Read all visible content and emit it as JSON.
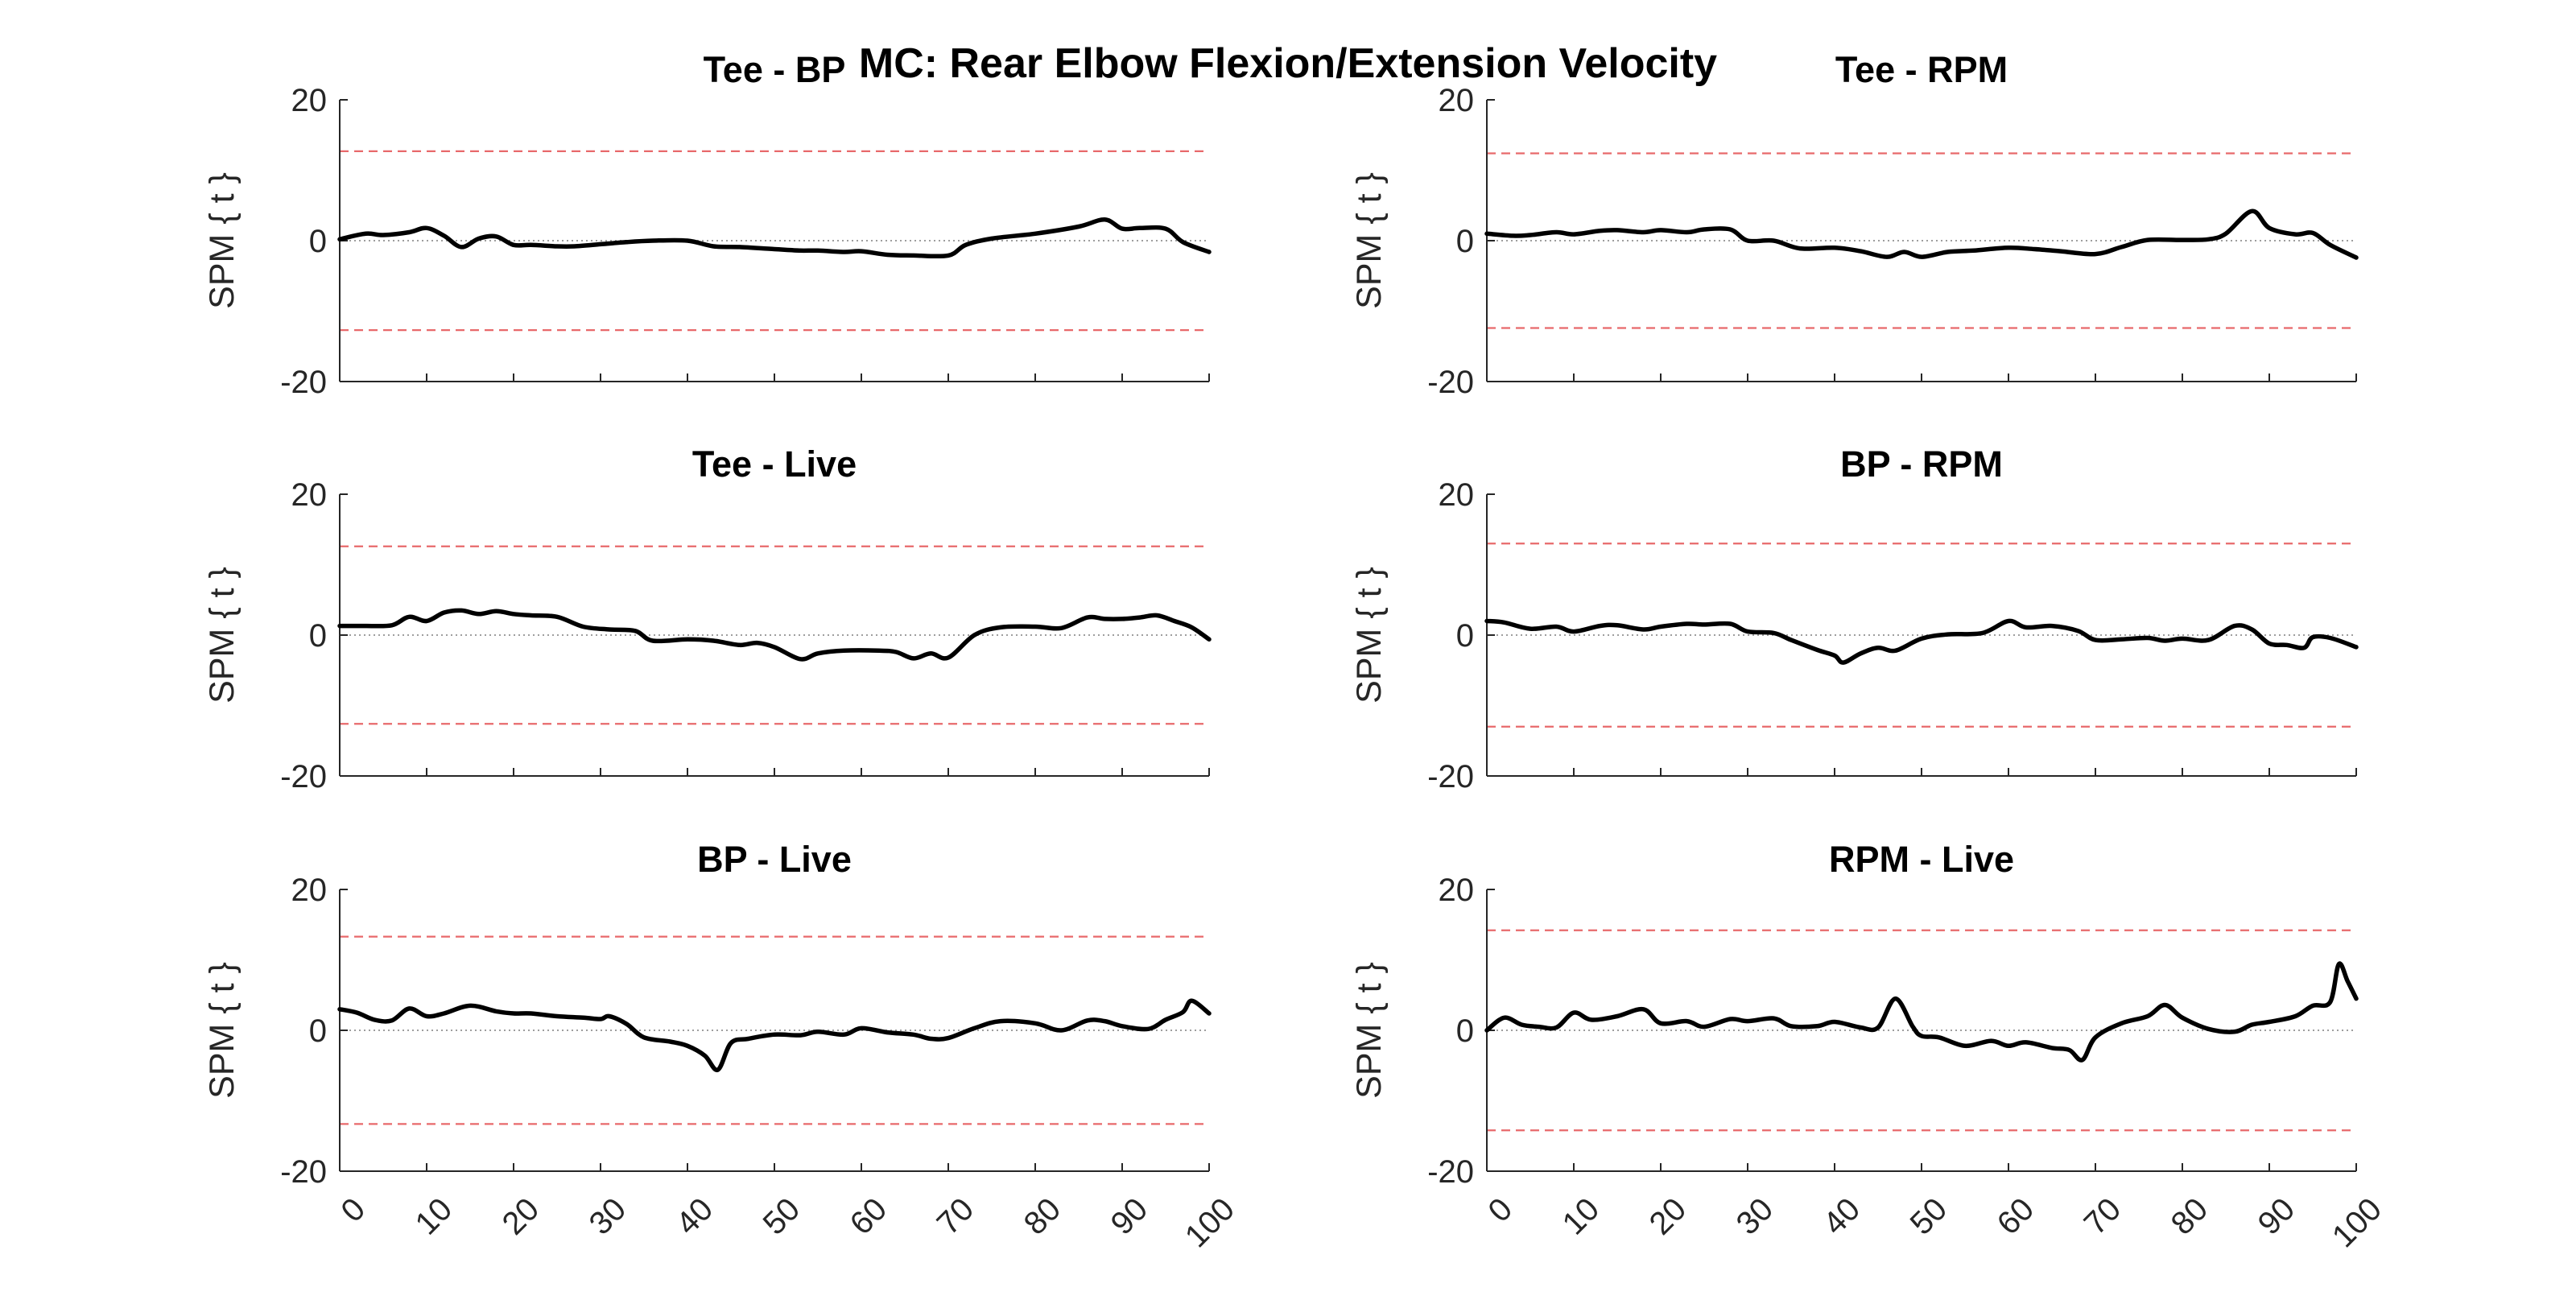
{
  "figure_title": "MC: Rear Elbow Flexion/Extension Velocity",
  "colors": {
    "curve": "#000000",
    "threshold": "#e8696b",
    "zero_line": "#9e9e9e",
    "axis": "#262626"
  },
  "chart_data": [
    {
      "type": "line",
      "title": "Tee - BP",
      "ylabel": "SPM { t }",
      "xlabel": "",
      "xlim": [
        0,
        100
      ],
      "ylim": [
        -20,
        20
      ],
      "yticks": [
        -20,
        0,
        20
      ],
      "xticks": [
        0,
        10,
        20,
        30,
        40,
        50,
        60,
        70,
        80,
        90,
        100
      ],
      "show_xtick_labels": false,
      "threshold": 12.7,
      "grid": false,
      "x": [
        0,
        3,
        5,
        8,
        10,
        12,
        14,
        16,
        18,
        20,
        22,
        25,
        27,
        30,
        33,
        36,
        40,
        43,
        46,
        50,
        53,
        55,
        58,
        60,
        63,
        66,
        70,
        72,
        75,
        80,
        85,
        88,
        90,
        92,
        95,
        97,
        100
      ],
      "y": [
        0.2,
        1.0,
        0.8,
        1.2,
        1.8,
        0.7,
        -0.9,
        0.3,
        0.6,
        -0.6,
        -0.6,
        -0.8,
        -0.8,
        -0.5,
        -0.2,
        0.0,
        0.0,
        -0.8,
        -0.9,
        -1.2,
        -1.4,
        -1.4,
        -1.6,
        -1.5,
        -2.0,
        -2.1,
        -2.1,
        -0.6,
        0.3,
        1.0,
        2.0,
        3.0,
        1.7,
        1.8,
        1.7,
        -0.2,
        -1.6
      ]
    },
    {
      "type": "line",
      "title": "Tee - RPM",
      "ylabel": "SPM { t }",
      "xlabel": "",
      "xlim": [
        0,
        100
      ],
      "ylim": [
        -20,
        20
      ],
      "yticks": [
        -20,
        0,
        20
      ],
      "xticks": [
        0,
        10,
        20,
        30,
        40,
        50,
        60,
        70,
        80,
        90,
        100
      ],
      "show_xtick_labels": false,
      "threshold": 12.4,
      "grid": false,
      "x": [
        0,
        3,
        5,
        8,
        10,
        13,
        15,
        18,
        20,
        23,
        25,
        28,
        30,
        33,
        36,
        40,
        43,
        46,
        48,
        50,
        53,
        56,
        60,
        63,
        66,
        70,
        73,
        76,
        80,
        83,
        85,
        88,
        90,
        93,
        95,
        97,
        100
      ],
      "y": [
        1.0,
        0.7,
        0.8,
        1.2,
        0.9,
        1.4,
        1.5,
        1.2,
        1.5,
        1.2,
        1.6,
        1.6,
        0.0,
        0.0,
        -1.1,
        -1.0,
        -1.5,
        -2.3,
        -1.6,
        -2.3,
        -1.6,
        -1.4,
        -1.0,
        -1.2,
        -1.5,
        -1.9,
        -0.9,
        0.1,
        0.1,
        0.2,
        1.0,
        4.2,
        1.8,
        0.9,
        1.1,
        -0.6,
        -2.4
      ]
    },
    {
      "type": "line",
      "title": "Tee - Live",
      "ylabel": "SPM { t }",
      "xlabel": "",
      "xlim": [
        0,
        100
      ],
      "ylim": [
        -20,
        20
      ],
      "yticks": [
        -20,
        0,
        20
      ],
      "xticks": [
        0,
        10,
        20,
        30,
        40,
        50,
        60,
        70,
        80,
        90,
        100
      ],
      "show_xtick_labels": false,
      "threshold": 12.6,
      "grid": false,
      "x": [
        0,
        3,
        6,
        8,
        10,
        12,
        14,
        16,
        18,
        20,
        22,
        25,
        28,
        31,
        34,
        36,
        40,
        43,
        46,
        48,
        50,
        53,
        55,
        58,
        62,
        64,
        66,
        68,
        70,
        73,
        76,
        80,
        83,
        86,
        88,
        90,
        92,
        94,
        96,
        98,
        100
      ],
      "y": [
        1.3,
        1.3,
        1.4,
        2.6,
        2.0,
        3.2,
        3.5,
        3.0,
        3.4,
        3.0,
        2.8,
        2.6,
        1.2,
        0.8,
        0.6,
        -0.8,
        -0.6,
        -0.8,
        -1.4,
        -1.1,
        -1.7,
        -3.4,
        -2.6,
        -2.2,
        -2.2,
        -2.4,
        -3.3,
        -2.6,
        -3.2,
        0.0,
        1.1,
        1.2,
        1.0,
        2.5,
        2.3,
        2.3,
        2.5,
        2.8,
        2.0,
        1.1,
        -0.6
      ]
    },
    {
      "type": "line",
      "title": "BP - RPM",
      "ylabel": "SPM { t }",
      "xlabel": "",
      "xlim": [
        0,
        100
      ],
      "ylim": [
        -20,
        20
      ],
      "yticks": [
        -20,
        0,
        20
      ],
      "xticks": [
        0,
        10,
        20,
        30,
        40,
        50,
        60,
        70,
        80,
        90,
        100
      ],
      "show_xtick_labels": false,
      "threshold": 13.0,
      "grid": false,
      "x": [
        0,
        2,
        5,
        8,
        10,
        13,
        15,
        18,
        20,
        23,
        25,
        28,
        30,
        33,
        35,
        38,
        40,
        41,
        43,
        45,
        47,
        50,
        53,
        57,
        60,
        62,
        65,
        68,
        70,
        73,
        76,
        78,
        80,
        83,
        86,
        88,
        90,
        92,
        94,
        95,
        97,
        100
      ],
      "y": [
        2.0,
        1.8,
        0.9,
        1.2,
        0.5,
        1.3,
        1.4,
        0.8,
        1.2,
        1.6,
        1.5,
        1.6,
        0.5,
        0.3,
        -0.7,
        -2.1,
        -2.9,
        -3.9,
        -2.6,
        -1.8,
        -2.2,
        -0.5,
        0.1,
        0.3,
        2.0,
        1.1,
        1.3,
        0.6,
        -0.7,
        -0.6,
        -0.4,
        -0.8,
        -0.5,
        -0.7,
        1.3,
        0.8,
        -1.2,
        -1.4,
        -1.8,
        -0.3,
        -0.4,
        -1.7
      ]
    },
    {
      "type": "line",
      "title": "BP - Live",
      "ylabel": "SPM { t }",
      "xlabel": "",
      "xlim": [
        0,
        100
      ],
      "ylim": [
        -20,
        20
      ],
      "yticks": [
        -20,
        0,
        20
      ],
      "xticks": [
        0,
        10,
        20,
        30,
        40,
        50,
        60,
        70,
        80,
        90,
        100
      ],
      "show_xtick_labels": true,
      "threshold": 13.3,
      "grid": false,
      "x": [
        0,
        2,
        4,
        6,
        8,
        10,
        12,
        15,
        18,
        20,
        22,
        25,
        28,
        30,
        31,
        33,
        35,
        38,
        40,
        42,
        43.5,
        45,
        47,
        50,
        53,
        55,
        58,
        60,
        63,
        66,
        68,
        70,
        73,
        76,
        80,
        83,
        86,
        88,
        90,
        93,
        95,
        97,
        98,
        100
      ],
      "y": [
        3.0,
        2.5,
        1.5,
        1.4,
        3.1,
        2.0,
        2.4,
        3.5,
        2.7,
        2.4,
        2.4,
        2.0,
        1.8,
        1.6,
        2.0,
        0.9,
        -1.0,
        -1.6,
        -2.2,
        -3.6,
        -5.6,
        -1.8,
        -1.2,
        -0.6,
        -0.7,
        -0.2,
        -0.6,
        0.3,
        -0.3,
        -0.6,
        -1.2,
        -1.1,
        0.3,
        1.3,
        1.0,
        0.0,
        1.4,
        1.3,
        0.6,
        0.2,
        1.5,
        2.6,
        4.2,
        2.4
      ]
    },
    {
      "type": "line",
      "title": "RPM - Live",
      "ylabel": "SPM { t }",
      "xlabel": "",
      "xlim": [
        0,
        100
      ],
      "ylim": [
        -20,
        20
      ],
      "yticks": [
        -20,
        0,
        20
      ],
      "xticks": [
        0,
        10,
        20,
        30,
        40,
        50,
        60,
        70,
        80,
        90,
        100
      ],
      "show_xtick_labels": true,
      "threshold": 14.2,
      "grid": false,
      "x": [
        0,
        2,
        4,
        6,
        8,
        10,
        12,
        15,
        18,
        20,
        23,
        25,
        28,
        30,
        33,
        35,
        38,
        40,
        43,
        45,
        47,
        49,
        50,
        52,
        55,
        58,
        60,
        62,
        65,
        67,
        68.5,
        70,
        73,
        76,
        78,
        80,
        83,
        86,
        88,
        90,
        93,
        95,
        97,
        98,
        99,
        100
      ],
      "y": [
        0.0,
        1.8,
        0.8,
        0.5,
        0.4,
        2.5,
        1.5,
        2.0,
        3.0,
        1.0,
        1.3,
        0.5,
        1.6,
        1.3,
        1.7,
        0.6,
        0.6,
        1.2,
        0.4,
        0.4,
        4.5,
        0.5,
        -0.8,
        -1.0,
        -2.2,
        -1.5,
        -2.2,
        -1.7,
        -2.5,
        -2.8,
        -4.2,
        -1.0,
        1.0,
        2.0,
        3.6,
        1.8,
        0.2,
        -0.2,
        0.8,
        1.2,
        2.0,
        3.5,
        4.0,
        9.4,
        7.0,
        4.5
      ]
    }
  ]
}
